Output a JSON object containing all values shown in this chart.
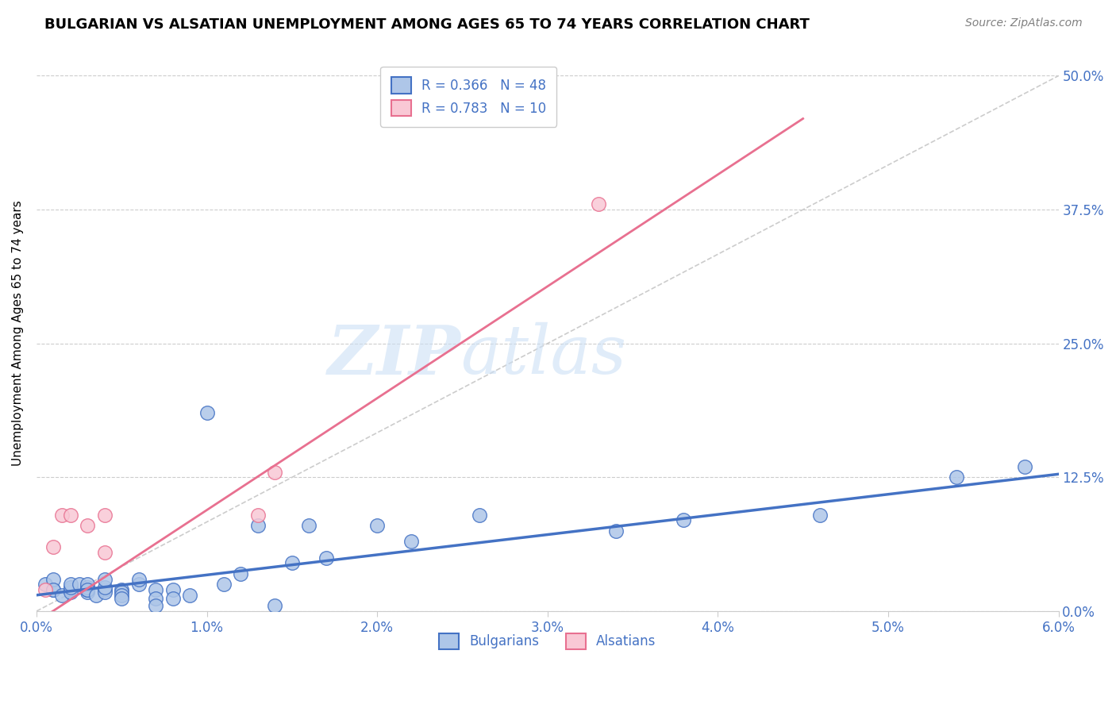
{
  "title": "BULGARIAN VS ALSATIAN UNEMPLOYMENT AMONG AGES 65 TO 74 YEARS CORRELATION CHART",
  "source": "Source: ZipAtlas.com",
  "xlabel_ticks": [
    "0.0%",
    "1.0%",
    "2.0%",
    "3.0%",
    "4.0%",
    "5.0%",
    "6.0%"
  ],
  "ylabel_ticks": [
    "0.0%",
    "12.5%",
    "25.0%",
    "37.5%",
    "50.0%"
  ],
  "xlim": [
    0.0,
    0.06
  ],
  "ylim": [
    0.0,
    0.52
  ],
  "ylabel": "Unemployment Among Ages 65 to 74 years",
  "legend_entries": [
    {
      "label": "R = 0.366   N = 48",
      "color_face": "#aec6e8",
      "color_edge": "#4472c4"
    },
    {
      "label": "R = 0.783   N = 10",
      "color_face": "#f4b8c8",
      "color_edge": "#e87090"
    }
  ],
  "bulgarian_scatter_x": [
    0.0005,
    0.001,
    0.001,
    0.001,
    0.0015,
    0.002,
    0.002,
    0.002,
    0.002,
    0.0025,
    0.003,
    0.003,
    0.003,
    0.003,
    0.003,
    0.0035,
    0.004,
    0.004,
    0.004,
    0.004,
    0.005,
    0.005,
    0.005,
    0.005,
    0.006,
    0.006,
    0.007,
    0.007,
    0.007,
    0.008,
    0.008,
    0.009,
    0.01,
    0.011,
    0.012,
    0.013,
    0.014,
    0.015,
    0.016,
    0.017,
    0.02,
    0.022,
    0.026,
    0.034,
    0.038,
    0.046,
    0.054,
    0.058
  ],
  "bulgarian_scatter_y": [
    0.025,
    0.02,
    0.03,
    0.02,
    0.015,
    0.02,
    0.018,
    0.022,
    0.025,
    0.025,
    0.018,
    0.02,
    0.022,
    0.025,
    0.02,
    0.015,
    0.02,
    0.018,
    0.022,
    0.03,
    0.02,
    0.018,
    0.015,
    0.012,
    0.025,
    0.03,
    0.02,
    0.012,
    0.005,
    0.02,
    0.012,
    0.015,
    0.185,
    0.025,
    0.035,
    0.08,
    0.005,
    0.045,
    0.08,
    0.05,
    0.08,
    0.065,
    0.09,
    0.075,
    0.085,
    0.09,
    0.125,
    0.135
  ],
  "alsatian_scatter_x": [
    0.0005,
    0.001,
    0.0015,
    0.002,
    0.003,
    0.004,
    0.004,
    0.013,
    0.014,
    0.033
  ],
  "alsatian_scatter_y": [
    0.02,
    0.06,
    0.09,
    0.09,
    0.08,
    0.055,
    0.09,
    0.09,
    0.13,
    0.38
  ],
  "bulgarian_line_x": [
    0.0,
    0.06
  ],
  "bulgarian_line_y": [
    0.015,
    0.128
  ],
  "alsatian_line_x": [
    0.0,
    0.045
  ],
  "alsatian_line_y": [
    -0.01,
    0.46
  ],
  "diagonal_line_x": [
    0.0,
    0.06
  ],
  "diagonal_line_y": [
    0.0,
    0.5
  ],
  "bulgarian_color": "#4472c4",
  "bulgarian_face": "#aec6e8",
  "alsatian_color": "#e87090",
  "alsatian_face": "#f9c8d5",
  "watermark_zip": "ZIP",
  "watermark_atlas": "atlas",
  "background_color": "#ffffff",
  "grid_color": "#cccccc"
}
